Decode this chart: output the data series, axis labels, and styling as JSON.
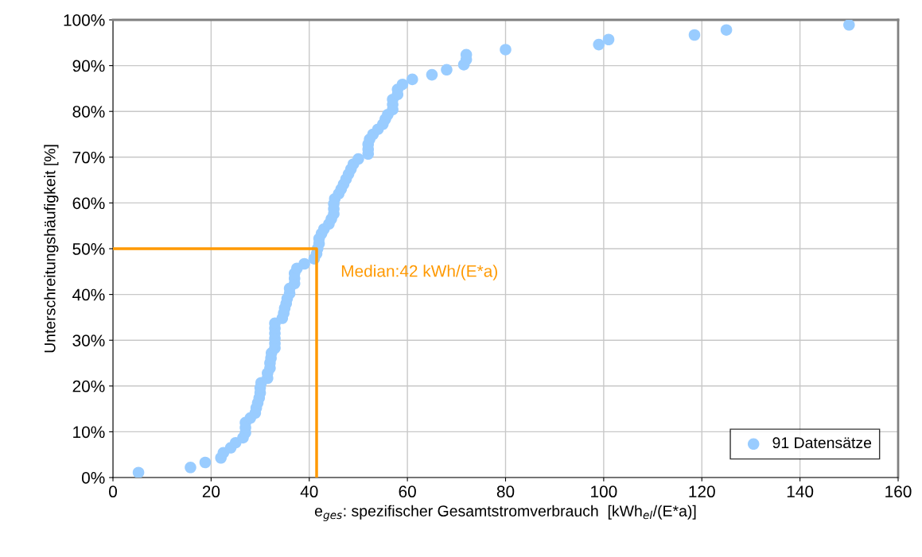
{
  "chart_data": {
    "type": "scatter",
    "xlabel": "e$_{ges}$: spezifischer Gesamtstromverbrauch  [kWh$_{el}$/(E*a)]",
    "ylabel": "Unterschreitungshäufigkeit [%]",
    "series": [
      {
        "name": "91 Datensätze",
        "color": "#99ccff",
        "marker": "circle",
        "x": [
          5.2,
          15.8,
          18.8,
          22,
          22.5,
          24,
          25,
          26.5,
          27,
          27,
          27,
          28,
          29,
          29.2,
          29.5,
          29.8,
          30,
          30,
          30.2,
          31.5,
          31.5,
          32,
          32,
          32.2,
          32.3,
          33,
          33,
          33,
          33,
          33,
          33,
          34.5,
          34.8,
          35,
          35.3,
          35.5,
          36,
          36,
          37,
          37,
          37,
          37.5,
          39,
          41,
          41.5,
          41.7,
          42,
          42,
          42.5,
          43,
          44,
          44.5,
          45,
          45,
          45,
          45.2,
          46,
          46.5,
          47,
          47.5,
          48,
          48.5,
          49,
          50,
          52,
          52,
          52,
          52.3,
          53,
          54,
          55,
          55.5,
          56,
          57,
          57,
          57,
          58,
          58,
          59,
          61,
          65,
          68,
          71.5,
          72,
          72,
          80,
          99,
          101,
          118.5,
          125,
          150
        ],
        "values": [
          1.1,
          2.2,
          3.3,
          4.3,
          5.4,
          6.5,
          7.6,
          8.7,
          9.8,
          10.9,
          12.0,
          13.0,
          14.1,
          15.2,
          16.3,
          17.4,
          18.5,
          19.6,
          20.7,
          21.7,
          22.8,
          23.9,
          25.0,
          26.1,
          27.2,
          28.3,
          29.3,
          30.4,
          31.5,
          32.6,
          33.7,
          34.8,
          35.9,
          37.0,
          38.0,
          39.1,
          40.2,
          41.3,
          42.4,
          43.5,
          44.6,
          45.7,
          46.7,
          47.8,
          48.9,
          50.0,
          51.1,
          52.2,
          53.3,
          54.3,
          55.4,
          56.5,
          57.6,
          58.7,
          59.8,
          60.9,
          62.0,
          63.0,
          64.1,
          65.2,
          66.3,
          67.4,
          68.5,
          69.6,
          70.7,
          71.7,
          72.8,
          73.9,
          75.0,
          76.1,
          77.2,
          78.3,
          79.3,
          80.4,
          81.5,
          82.6,
          83.7,
          84.8,
          85.9,
          87.0,
          88.0,
          89.1,
          90.2,
          91.3,
          92.4,
          93.5,
          94.6,
          95.7,
          96.7,
          97.8,
          98.9
        ]
      },
      {
        "color": "#ff9900",
        "type": "line",
        "marker": "none",
        "x": [
          0,
          41.5,
          41.5
        ],
        "values": [
          50,
          50,
          0
        ]
      }
    ],
    "annotations": [
      "Median:42 kWh/(E*a)"
    ],
    "xlim": [
      0,
      160
    ],
    "xticks": [
      0,
      20,
      40,
      60,
      80,
      100,
      120,
      140,
      160
    ],
    "ylim": [
      0,
      100
    ],
    "yticks": [
      {
        "value": 0,
        "label": "0%"
      },
      {
        "value": 10,
        "label": "10%"
      },
      {
        "value": 20,
        "label": "20%"
      },
      {
        "value": 30,
        "label": "30%"
      },
      {
        "value": 40,
        "label": "40%"
      },
      {
        "value": 50,
        "label": "50%"
      },
      {
        "value": 60,
        "label": "60%"
      },
      {
        "value": 70,
        "label": "70%"
      },
      {
        "value": 80,
        "label": "80%"
      },
      {
        "value": 90,
        "label": "90%"
      },
      {
        "value": 100,
        "label": "100%"
      }
    ],
    "grid": true,
    "legend": "bottom right"
  }
}
